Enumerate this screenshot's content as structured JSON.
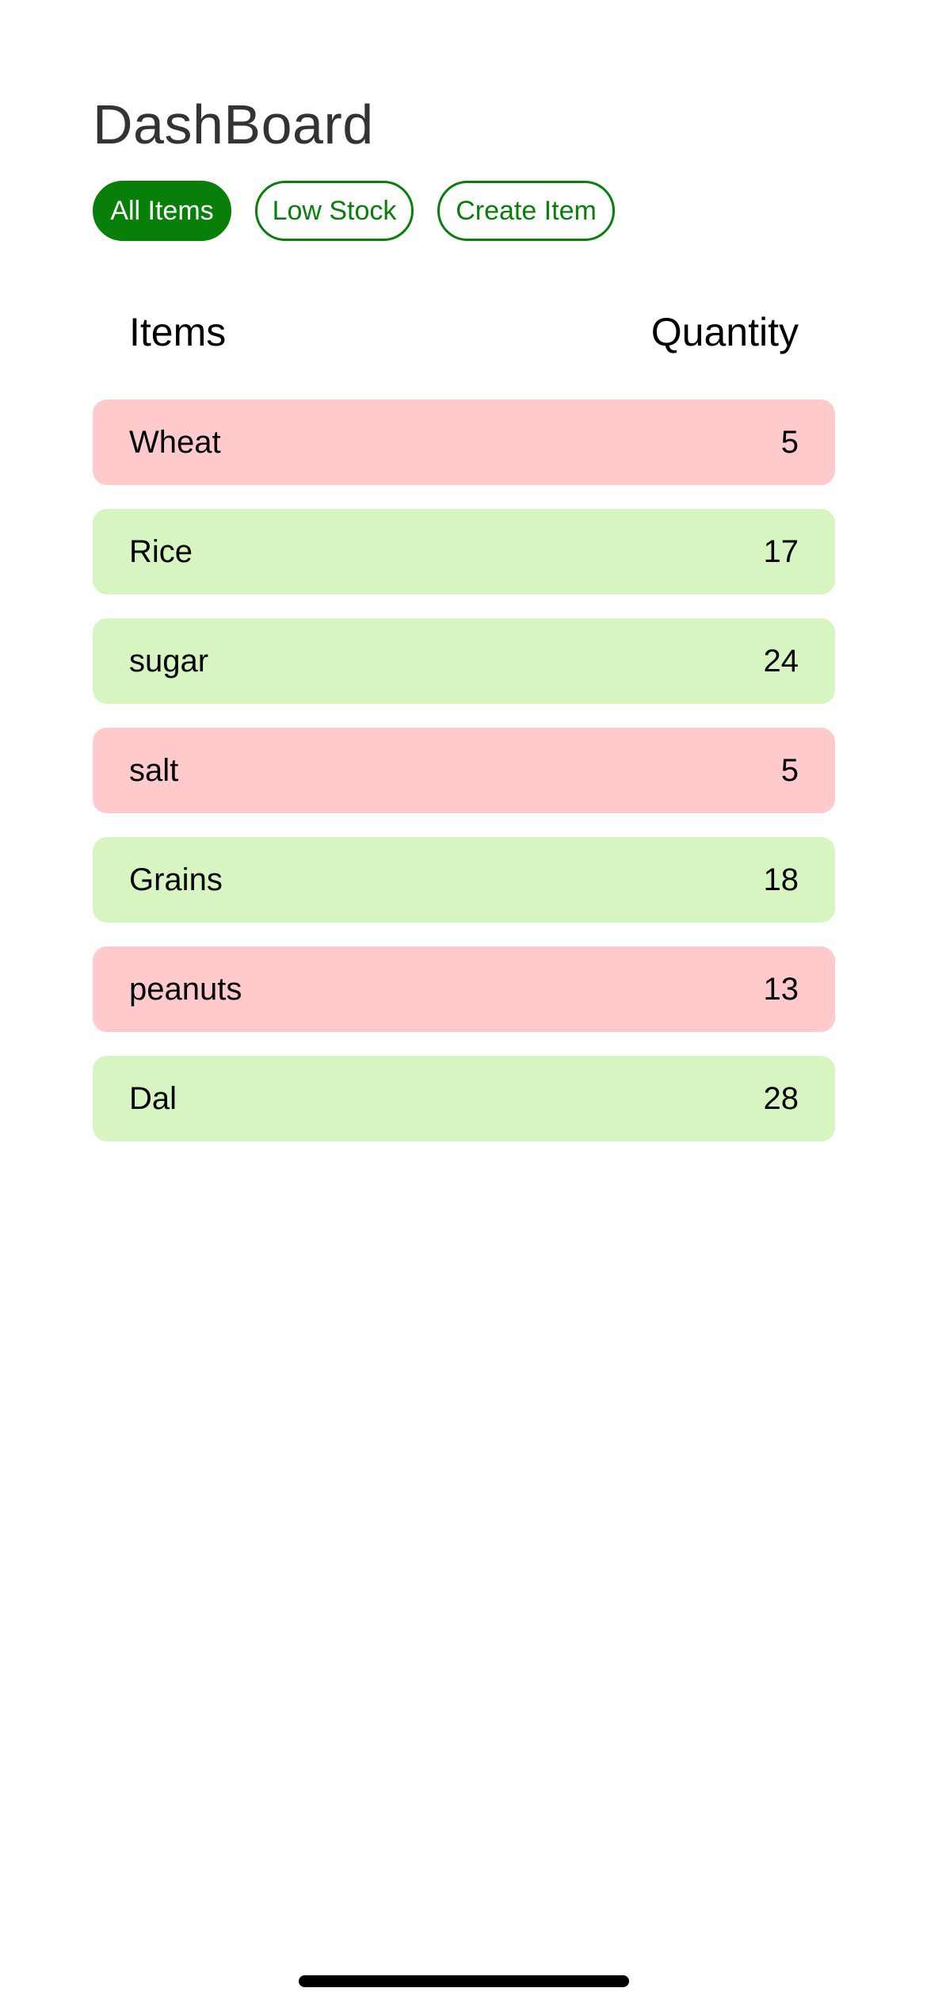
{
  "page": {
    "title": "DashBoard"
  },
  "tabs": [
    {
      "label": "All Items",
      "active": true
    },
    {
      "label": "Low Stock",
      "active": false
    },
    {
      "label": "Create Item",
      "active": false
    }
  ],
  "table": {
    "headers": {
      "items": "Items",
      "quantity": "Quantity"
    },
    "rows": [
      {
        "name": "Wheat",
        "quantity": "5",
        "status": "low"
      },
      {
        "name": "Rice",
        "quantity": "17",
        "status": "ok"
      },
      {
        "name": "sugar",
        "quantity": "24",
        "status": "ok"
      },
      {
        "name": "salt",
        "quantity": "5",
        "status": "low"
      },
      {
        "name": "Grains",
        "quantity": "18",
        "status": "ok"
      },
      {
        "name": "peanuts",
        "quantity": "13",
        "status": "low"
      },
      {
        "name": "Dal",
        "quantity": "28",
        "status": "ok"
      }
    ]
  },
  "colors": {
    "accent": "#087f08",
    "low_stock_row": "#fecacb",
    "ok_stock_row": "#d7f5c0"
  }
}
